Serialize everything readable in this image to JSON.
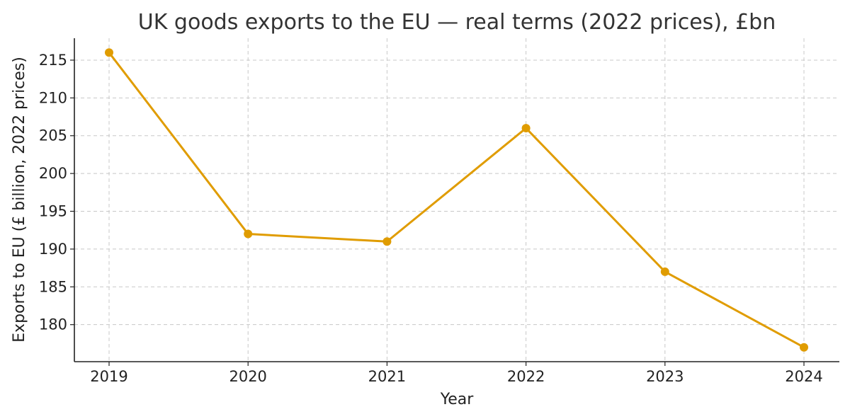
{
  "chart_data": {
    "type": "line",
    "title": "UK goods exports to the EU — real terms (2022 prices), £bn",
    "xlabel": "Year",
    "ylabel": "Exports to EU (£ billion, 2022 prices)",
    "categories": [
      "2019",
      "2020",
      "2021",
      "2022",
      "2023",
      "2024"
    ],
    "series": [
      {
        "values": [
          216,
          192,
          191,
          206,
          187,
          177
        ],
        "color": "#E09C00"
      }
    ],
    "yticks": [
      180,
      185,
      190,
      195,
      200,
      205,
      210,
      215
    ],
    "ylim": [
      175.1,
      217.9
    ],
    "grid": true,
    "legend": "none"
  }
}
